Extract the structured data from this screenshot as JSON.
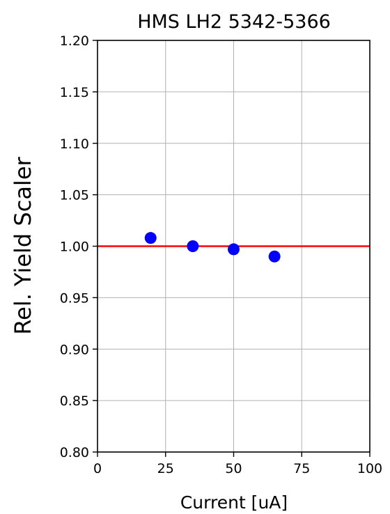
{
  "chart_data": {
    "type": "scatter",
    "title": "HMS LH2 5342-5366",
    "xlabel": "Current [uA]",
    "ylabel": "Rel. Yield Scaler",
    "xlim": [
      0,
      100
    ],
    "ylim": [
      0.8,
      1.2
    ],
    "x_ticks": [
      0,
      25,
      50,
      75,
      100
    ],
    "x_tick_labels": [
      "0",
      "25",
      "50",
      "75",
      "100"
    ],
    "y_ticks": [
      0.8,
      0.85,
      0.9,
      0.95,
      1.0,
      1.05,
      1.1,
      1.15,
      1.2
    ],
    "y_tick_labels": [
      "0.80",
      "0.85",
      "0.90",
      "0.95",
      "1.00",
      "1.05",
      "1.10",
      "1.15",
      "1.20"
    ],
    "grid": true,
    "reference_line": {
      "y": 1.0,
      "color": "#ff0000"
    },
    "series": [
      {
        "color": "#0000ff",
        "x": [
          19.5,
          35,
          50,
          65
        ],
        "y": [
          1.008,
          1.0,
          0.997,
          0.99
        ]
      }
    ]
  }
}
